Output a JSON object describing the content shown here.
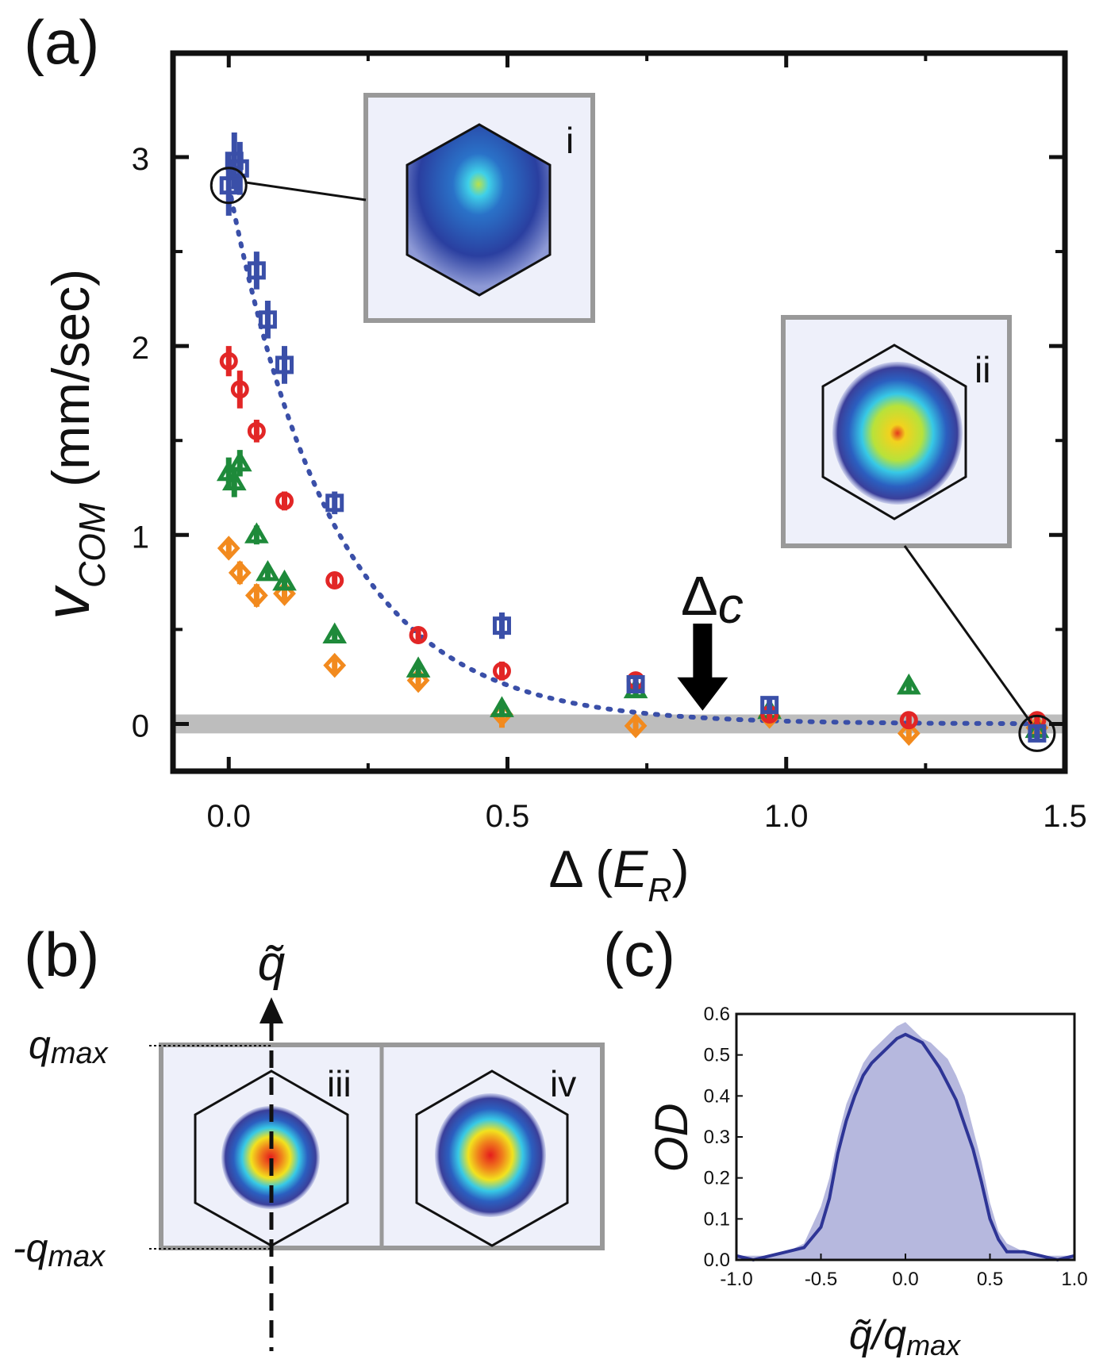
{
  "chart_data": [
    {
      "panel": "a",
      "panel_label": "(a)",
      "type": "scatter",
      "xlabel_main": "Δ (",
      "xlabel_italic": "E",
      "xlabel_sub": "R",
      "xlabel_close": ")",
      "ylabel_main": "v",
      "ylabel_sub": "COM",
      "ylabel_units": "(mm/sec)",
      "xlim": [
        -0.1,
        1.5
      ],
      "ylim": [
        -0.25,
        3.55
      ],
      "xticks": [
        0.0,
        0.5,
        1.0,
        1.5
      ],
      "xtick_labels": [
        "0.0",
        "0.5",
        "1.0",
        "1.5"
      ],
      "yticks": [
        0,
        1,
        2,
        3
      ],
      "ytick_labels": [
        "0",
        "1",
        "2",
        "3"
      ],
      "zero_band": [
        -0.05,
        0.05
      ],
      "annotation_main": "Δ",
      "annotation_sub": "c",
      "annotation_x": 0.85,
      "inset_i_label": "i",
      "inset_ii_label": "ii",
      "colors": {
        "blue": "#3a4fa8",
        "red": "#e22626",
        "green": "#1e8a3a",
        "orange": "#f28a1e",
        "band": "#bdbdbd"
      },
      "series": [
        {
          "name": "blue-squares",
          "marker": "square",
          "x": [
            0.0,
            0.01,
            0.02,
            0.05,
            0.07,
            0.1,
            0.19,
            0.49,
            0.73,
            0.97,
            1.45
          ],
          "y": [
            2.85,
            2.98,
            2.94,
            2.4,
            2.14,
            1.9,
            1.17,
            0.52,
            0.21,
            0.1,
            -0.05
          ],
          "err": [
            0.16,
            0.15,
            0.14,
            0.1,
            0.1,
            0.1,
            0.06,
            0.07,
            0.04,
            0.04,
            0.04
          ]
        },
        {
          "name": "red-circles",
          "marker": "circle",
          "x": [
            0.0,
            0.02,
            0.05,
            0.1,
            0.19,
            0.34,
            0.49,
            0.73,
            0.97,
            1.22,
            1.45
          ],
          "y": [
            1.92,
            1.77,
            1.55,
            1.18,
            0.76,
            0.47,
            0.28,
            0.23,
            0.05,
            0.02,
            0.02
          ],
          "err": [
            0.08,
            0.1,
            0.06,
            0.05,
            0.04,
            0.04,
            0.05,
            0.04,
            0.03,
            0.03,
            0.04
          ]
        },
        {
          "name": "green-triangles",
          "marker": "triangle",
          "x": [
            0.0,
            0.01,
            0.02,
            0.05,
            0.07,
            0.1,
            0.19,
            0.34,
            0.49,
            0.73,
            0.97,
            1.22,
            1.45
          ],
          "y": [
            1.33,
            1.28,
            1.38,
            1.0,
            0.8,
            0.75,
            0.47,
            0.29,
            0.08,
            0.18,
            0.07,
            0.2,
            -0.03
          ],
          "err": [
            0.08,
            0.08,
            0.07,
            0.05,
            0.04,
            0.04,
            0.04,
            0.04,
            0.04,
            0.04,
            0.04,
            0.03,
            0.04
          ]
        },
        {
          "name": "orange-diamonds",
          "marker": "diamond",
          "x": [
            0.0,
            0.02,
            0.05,
            0.1,
            0.19,
            0.34,
            0.49,
            0.73,
            0.97,
            1.22,
            1.45
          ],
          "y": [
            0.93,
            0.8,
            0.68,
            0.69,
            0.31,
            0.23,
            0.05,
            -0.01,
            0.04,
            -0.05,
            -0.02
          ],
          "err": [
            0.05,
            0.06,
            0.06,
            0.05,
            0.05,
            0.05,
            0.07,
            0.05,
            0.05,
            0.05,
            0.04
          ]
        }
      ],
      "fit_curve": {
        "name": "exponential-fit",
        "style": "dotted",
        "amplitude": 2.85,
        "decay": 0.19,
        "x_range": [
          0.0,
          1.45
        ]
      },
      "highlighted_points": [
        {
          "series": "blue-squares",
          "x": 0.0,
          "y": 2.85
        },
        {
          "series": "blue-squares",
          "x": 1.45,
          "y": -0.05
        }
      ]
    },
    {
      "panel": "b",
      "panel_label": "(b)",
      "type": "image",
      "axis_symbol": "q̃",
      "qmax_label_main": "q",
      "qmax_label_sub": "max",
      "neg_qmax_label_main": "-q",
      "neg_qmax_label_sub": "max",
      "inset_iii_label": "iii",
      "inset_iv_label": "iv"
    },
    {
      "panel": "c",
      "panel_label": "(c)",
      "type": "area",
      "ylabel": "OD",
      "xlabel_main": "q̃/q",
      "xlabel_sub": "max",
      "xlim": [
        -1.0,
        1.0
      ],
      "ylim": [
        0.0,
        0.6
      ],
      "xticks": [
        -1.0,
        -0.5,
        0.0,
        0.5,
        1.0
      ],
      "xtick_labels": [
        "-1.0",
        "-0.5",
        "0.0",
        "0.5",
        "1.0"
      ],
      "yticks": [
        0.0,
        0.1,
        0.2,
        0.3,
        0.4,
        0.5,
        0.6
      ],
      "ytick_labels": [
        "0.0",
        "0.1",
        "0.2",
        "0.3",
        "0.4",
        "0.5",
        "0.6"
      ],
      "series": [
        {
          "name": "filled-profile",
          "style": "area",
          "x": [
            -1.0,
            -0.9,
            -0.8,
            -0.7,
            -0.6,
            -0.5,
            -0.45,
            -0.4,
            -0.35,
            -0.3,
            -0.25,
            -0.2,
            -0.15,
            -0.1,
            -0.05,
            0.0,
            0.05,
            0.1,
            0.15,
            0.2,
            0.25,
            0.3,
            0.35,
            0.4,
            0.45,
            0.5,
            0.55,
            0.6,
            0.7,
            0.8,
            0.9,
            1.0
          ],
          "y": [
            0.01,
            0.01,
            0.01,
            0.02,
            0.04,
            0.13,
            0.2,
            0.3,
            0.38,
            0.43,
            0.48,
            0.51,
            0.53,
            0.55,
            0.57,
            0.58,
            0.56,
            0.54,
            0.53,
            0.51,
            0.49,
            0.45,
            0.4,
            0.32,
            0.24,
            0.14,
            0.07,
            0.04,
            0.02,
            0.01,
            0.01,
            0.01
          ]
        },
        {
          "name": "line-profile",
          "style": "line",
          "x": [
            -1.0,
            -0.9,
            -0.8,
            -0.7,
            -0.6,
            -0.5,
            -0.45,
            -0.4,
            -0.35,
            -0.3,
            -0.25,
            -0.2,
            -0.15,
            -0.1,
            -0.05,
            0.0,
            0.05,
            0.1,
            0.15,
            0.2,
            0.25,
            0.3,
            0.35,
            0.4,
            0.45,
            0.5,
            0.55,
            0.6,
            0.7,
            0.8,
            0.9,
            1.0
          ],
          "y": [
            0.01,
            0.0,
            0.01,
            0.02,
            0.03,
            0.08,
            0.15,
            0.26,
            0.34,
            0.4,
            0.45,
            0.48,
            0.5,
            0.52,
            0.54,
            0.55,
            0.54,
            0.53,
            0.5,
            0.47,
            0.43,
            0.39,
            0.33,
            0.27,
            0.19,
            0.1,
            0.05,
            0.02,
            0.02,
            0.01,
            0.0,
            0.01
          ]
        }
      ]
    }
  ]
}
